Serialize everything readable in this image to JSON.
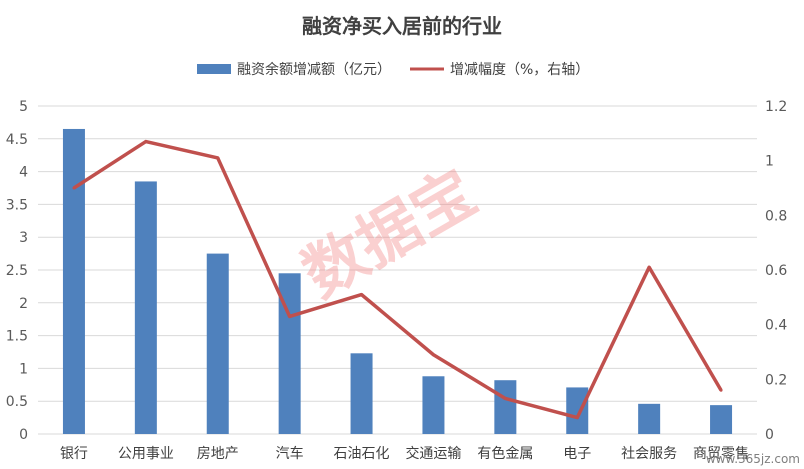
{
  "chart_data": {
    "type": "bar",
    "title": "融资净买入居前的行业",
    "categories": [
      "银行",
      "公用事业",
      "房地产",
      "汽车",
      "石油石化",
      "交通运输",
      "有色金属",
      "电子",
      "社会服务",
      "商贸零售"
    ],
    "series": [
      {
        "name": "融资余额增减额（亿元）",
        "type": "bar",
        "axis": "left",
        "color": "#4f81bd",
        "values": [
          4.65,
          3.85,
          2.75,
          2.45,
          1.23,
          0.88,
          0.82,
          0.71,
          0.46,
          0.44
        ]
      },
      {
        "name": "增减幅度（%，右轴）",
        "type": "line",
        "axis": "right",
        "color": "#c0504d",
        "values": [
          0.9,
          1.07,
          1.01,
          0.43,
          0.51,
          0.29,
          0.13,
          0.06,
          0.61,
          0.16
        ]
      }
    ],
    "y_left": {
      "min": 0,
      "max": 5,
      "ticks": [
        "0",
        "0.5",
        "1",
        "1.5",
        "2",
        "2.5",
        "3",
        "3.5",
        "4",
        "4.5",
        "5"
      ]
    },
    "y_right": {
      "min": 0,
      "max": 1.2,
      "ticks": [
        "0",
        "0.2",
        "0.4",
        "0.6",
        "0.8",
        "1",
        "1.2"
      ]
    },
    "grid": true,
    "legend_position": "top"
  },
  "watermark": "数据宝",
  "site_mark": "www.365jz.com"
}
